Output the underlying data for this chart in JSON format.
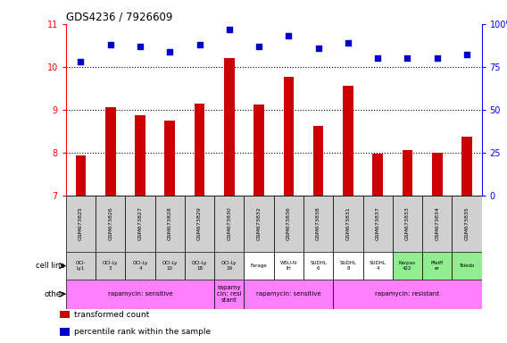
{
  "title": "GDS4236 / 7926609",
  "samples": [
    "GSM673825",
    "GSM673826",
    "GSM673827",
    "GSM673828",
    "GSM673829",
    "GSM673830",
    "GSM673832",
    "GSM673836",
    "GSM673838",
    "GSM673831",
    "GSM673837",
    "GSM673833",
    "GSM673834",
    "GSM673835"
  ],
  "bar_values": [
    7.93,
    9.05,
    8.87,
    8.75,
    9.15,
    10.2,
    9.12,
    9.77,
    8.62,
    9.57,
    7.97,
    8.05,
    8.0,
    8.37
  ],
  "dot_values": [
    78,
    88,
    87,
    84,
    88,
    97,
    87,
    93,
    86,
    89,
    80,
    80,
    80,
    82
  ],
  "ylim_left": [
    7,
    11
  ],
  "ylim_right": [
    0,
    100
  ],
  "yticks_left": [
    7,
    8,
    9,
    10,
    11
  ],
  "yticks_right": [
    0,
    25,
    50,
    75,
    100
  ],
  "bar_color": "#cc0000",
  "dot_color": "#0000cc",
  "cell_line_labels": [
    "OCI-\nLy1",
    "OCI-Ly\n3",
    "OCI-Ly\n4",
    "OCI-Ly\n10",
    "OCI-Ly\n18",
    "OCI-Ly\n19",
    "Farage",
    "WSU-N\nIH",
    "SUDHL\n6",
    "SUDHL\n8",
    "SUDHL\n4",
    "Karpas\n422",
    "Pfeiff\ner",
    "Toledo"
  ],
  "cell_line_bg": [
    "#d0d0d0",
    "#d0d0d0",
    "#d0d0d0",
    "#d0d0d0",
    "#d0d0d0",
    "#d0d0d0",
    "#ffffff",
    "#ffffff",
    "#ffffff",
    "#ffffff",
    "#ffffff",
    "#90ee90",
    "#90ee90",
    "#90ee90"
  ],
  "other_groups": [
    {
      "text": "rapamycin: sensitive",
      "start": 0,
      "end": 4,
      "color": "#ff80ff"
    },
    {
      "text": "rapamy\ncin: resi\nstant",
      "start": 5,
      "end": 5,
      "color": "#ff80ff"
    },
    {
      "text": "rapamycin: sensitive",
      "start": 6,
      "end": 8,
      "color": "#ff80ff"
    },
    {
      "text": "rapamycin: resistant",
      "start": 9,
      "end": 13,
      "color": "#ff80ff"
    }
  ],
  "legend_items": [
    {
      "color": "#cc0000",
      "label": "transformed count"
    },
    {
      "color": "#0000cc",
      "label": "percentile rank within the sample"
    }
  ],
  "bar_width": 0.35,
  "background_color": "#ffffff"
}
